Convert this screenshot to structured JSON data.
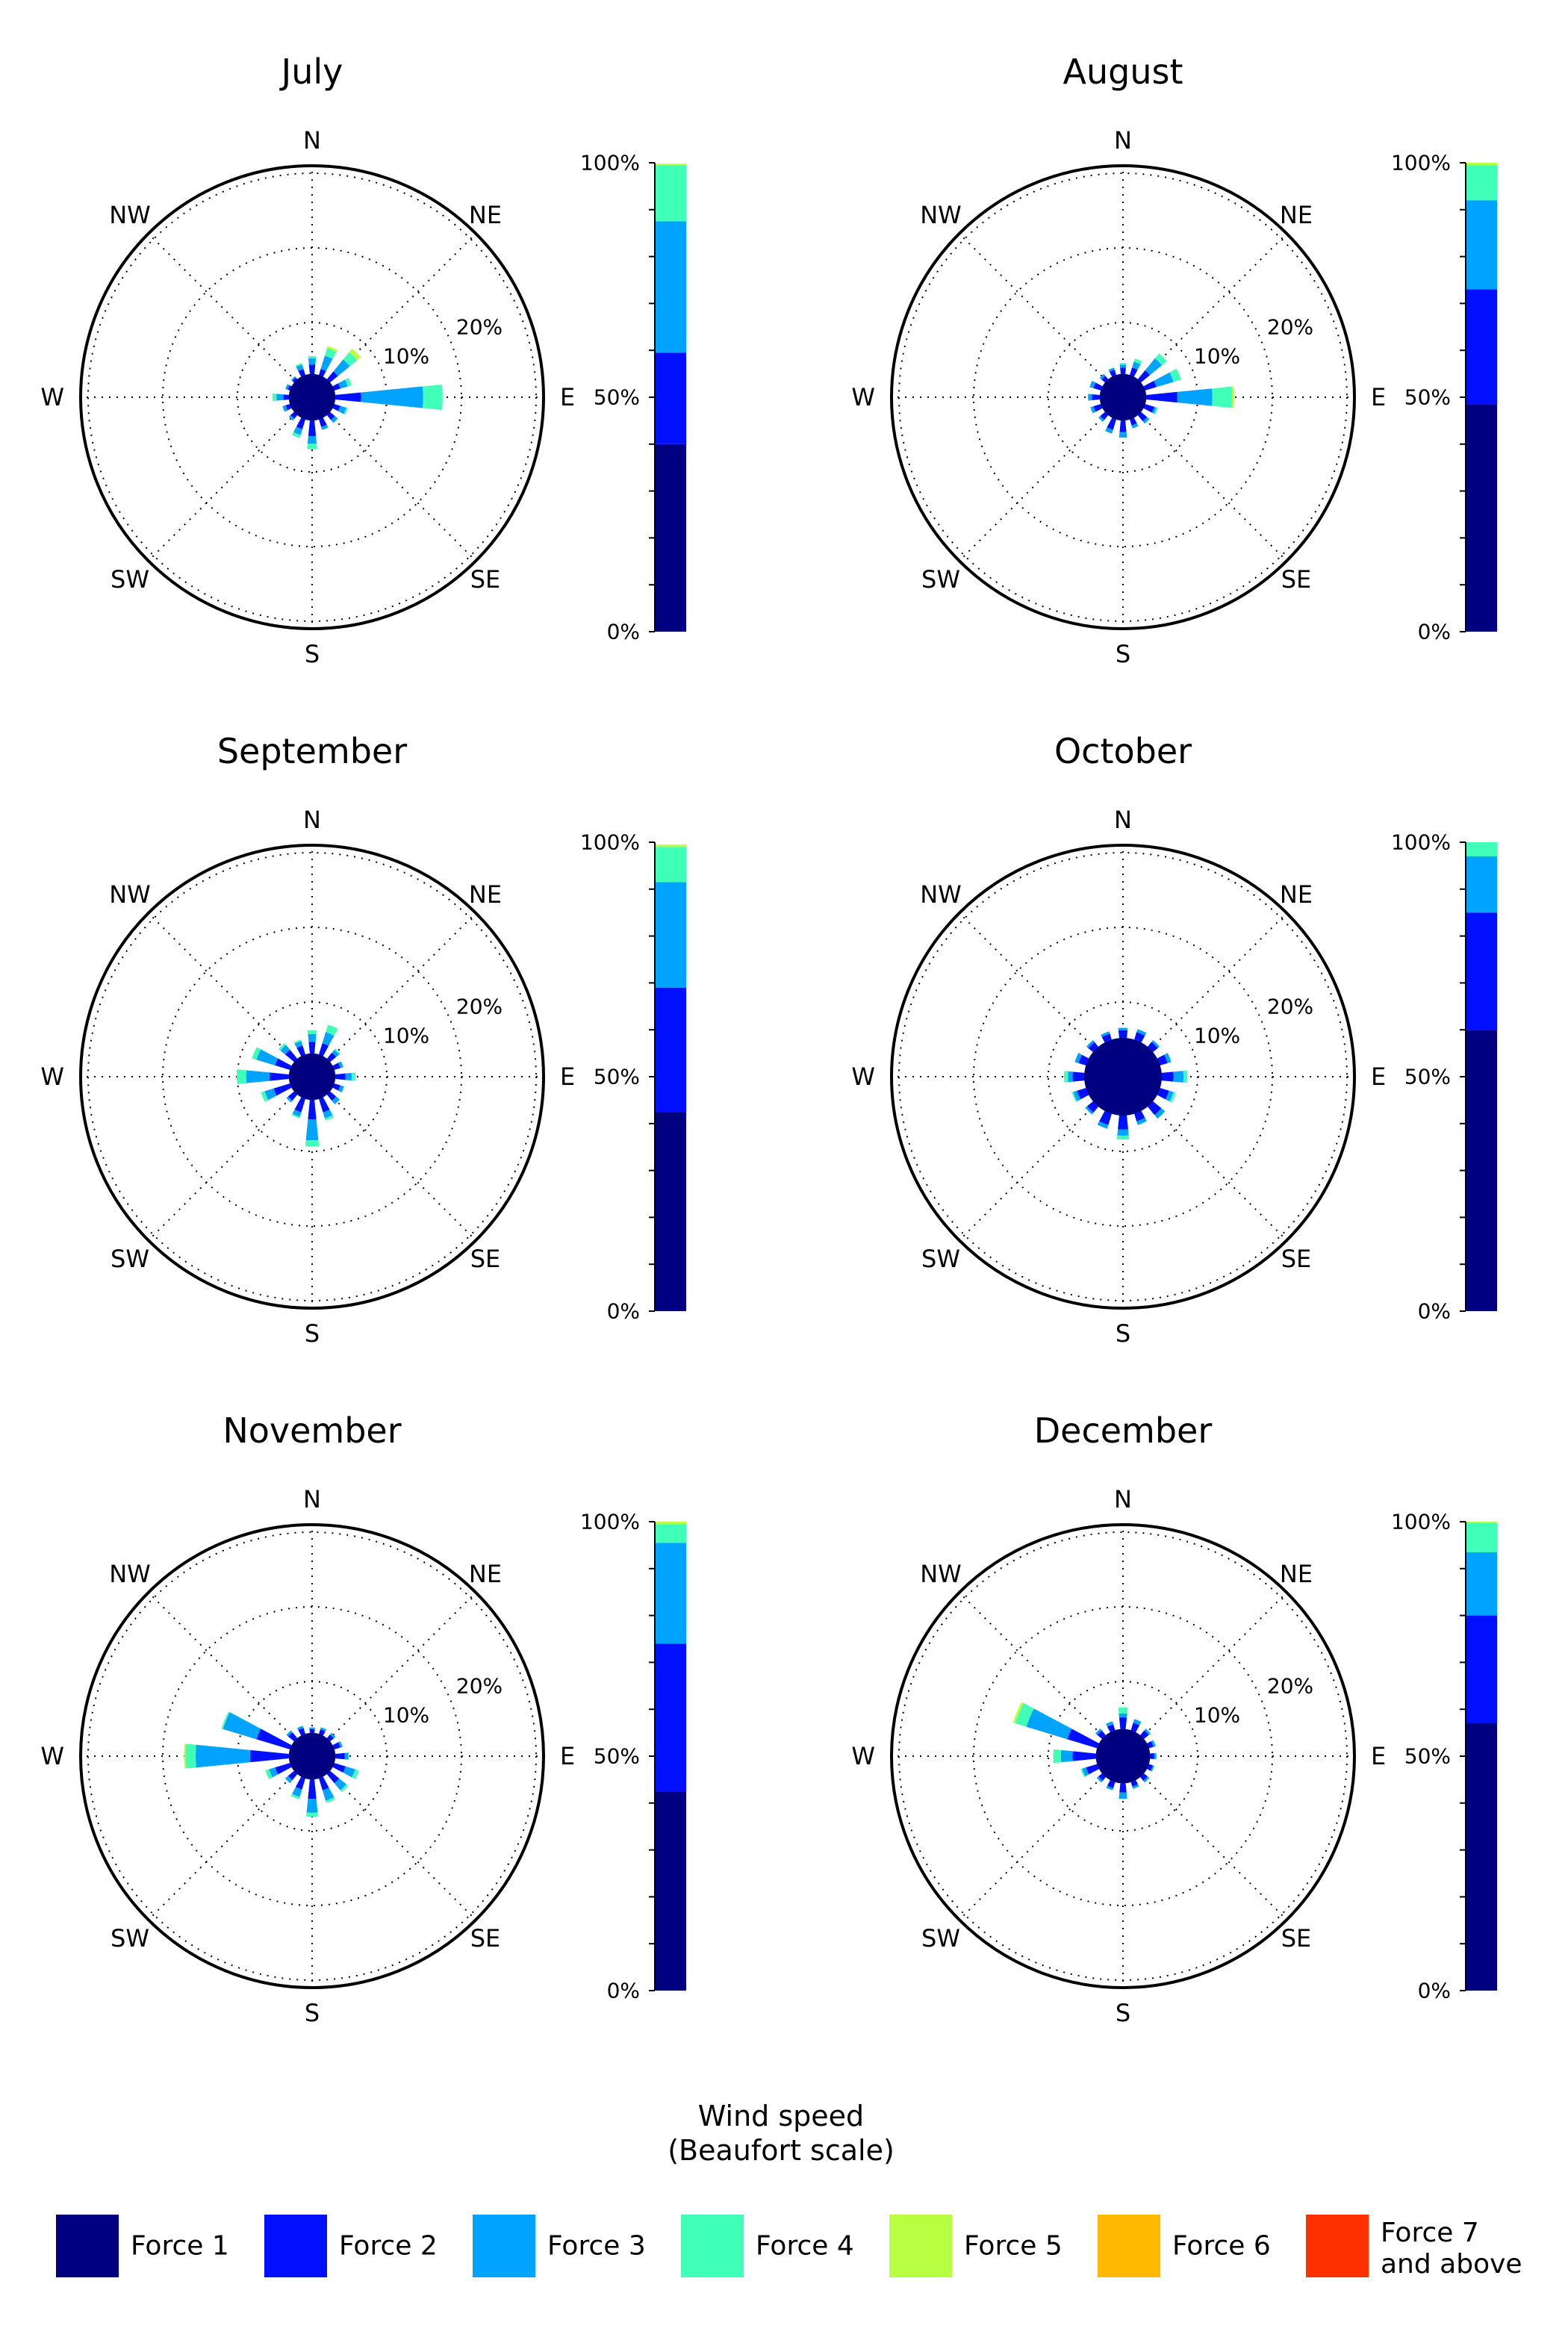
{
  "chart_data": {
    "type": "wind-rose",
    "direction_labels": [
      "N",
      "NE",
      "E",
      "SE",
      "S",
      "SW",
      "W",
      "NW"
    ],
    "ring_labels": [
      "10%",
      "20%"
    ],
    "bar_ticks": [
      "0%",
      "50%",
      "100%"
    ],
    "legend_title": [
      "Wind speed",
      "(Beaufort scale)"
    ],
    "categories": [
      {
        "name": "Force 1",
        "color": "#000080"
      },
      {
        "name": "Force 2",
        "color": "#0010ff"
      },
      {
        "name": "Force 3",
        "color": "#00a4ff"
      },
      {
        "name": "Force 4",
        "color": "#40ffb7"
      },
      {
        "name": "Force 5",
        "color": "#b7ff40"
      },
      {
        "name": "Force 6",
        "color": "#ffb900"
      },
      {
        "name": "Force 7\nand above",
        "color": "#ff3000"
      }
    ],
    "months": [
      {
        "title": "July",
        "distribution": [
          40,
          19.5,
          28,
          12,
          0.3,
          0,
          0
        ],
        "sectors": [
          [
            0,
            3.0,
            1.2,
            0.8,
            0.3,
            0,
            0,
            0
          ],
          [
            22.5,
            2.8,
            1.0,
            1.8,
            1.0,
            0.3,
            0,
            0
          ],
          [
            45,
            2.8,
            1.5,
            2.0,
            1.2,
            0.6,
            0,
            0
          ],
          [
            67.5,
            2.8,
            1.0,
            1.0,
            0.5,
            0,
            0,
            0
          ],
          [
            90,
            2.8,
            3.5,
            8.0,
            2.5,
            0,
            0,
            0
          ],
          [
            112.5,
            2.8,
            1.0,
            0.8,
            0.2,
            0,
            0,
            0
          ],
          [
            135,
            2.8,
            1.0,
            0.5,
            0,
            0,
            0,
            0
          ],
          [
            157.5,
            2.8,
            1.2,
            0.4,
            0,
            0,
            0,
            0
          ],
          [
            180,
            2.8,
            2.2,
            1.0,
            0.7,
            0,
            0,
            0
          ],
          [
            202.5,
            2.8,
            1.5,
            0.8,
            0.4,
            0,
            0,
            0
          ],
          [
            225,
            2.8,
            0.8,
            0.3,
            0,
            0,
            0,
            0
          ],
          [
            247.5,
            2.8,
            0.8,
            0.4,
            0,
            0,
            0,
            0
          ],
          [
            270,
            2.8,
            0.9,
            0.9,
            0.5,
            0,
            0,
            0
          ],
          [
            292.5,
            2.8,
            0.5,
            0.3,
            0,
            0,
            0,
            0
          ],
          [
            315,
            2.8,
            0.5,
            0.2,
            0,
            0,
            0,
            0
          ],
          [
            337.5,
            2.8,
            1.0,
            0.6,
            0.2,
            0,
            0,
            0
          ]
        ]
      },
      {
        "title": "August",
        "distribution": [
          48.5,
          24.5,
          19,
          7.5,
          0.5,
          0,
          0
        ],
        "sectors": [
          [
            0,
            3.0,
            0.8,
            0.4,
            0.2,
            0,
            0,
            0
          ],
          [
            22.5,
            3.0,
            1.0,
            0.8,
            0.4,
            0,
            0,
            0
          ],
          [
            45,
            3.0,
            1.5,
            2.0,
            0.8,
            0,
            0,
            0
          ],
          [
            67.5,
            3.0,
            1.5,
            2.3,
            1.0,
            0,
            0,
            0
          ],
          [
            90,
            3.0,
            4.0,
            4.5,
            2.5,
            0.3,
            0,
            0
          ],
          [
            112.5,
            3.0,
            1.2,
            0.3,
            0.2,
            0,
            0,
            0
          ],
          [
            135,
            3.0,
            1.0,
            0.4,
            0,
            0,
            0,
            0
          ],
          [
            157.5,
            3.0,
            0.8,
            0.4,
            0,
            0,
            0,
            0
          ],
          [
            180,
            3.0,
            1.5,
            0.7,
            0,
            0,
            0,
            0
          ],
          [
            202.5,
            3.0,
            1.4,
            0.5,
            0,
            0,
            0,
            0
          ],
          [
            225,
            3.0,
            0.8,
            0.3,
            0,
            0,
            0,
            0
          ],
          [
            247.5,
            3.0,
            1.0,
            0.4,
            0,
            0,
            0,
            0
          ],
          [
            270,
            3.0,
            1.0,
            0.5,
            0,
            0,
            0,
            0
          ],
          [
            292.5,
            3.0,
            1.0,
            0.5,
            0,
            0,
            0,
            0
          ],
          [
            315,
            3.0,
            0.6,
            0.3,
            0,
            0,
            0,
            0
          ],
          [
            337.5,
            3.0,
            0.7,
            0.3,
            0,
            0,
            0,
            0
          ]
        ]
      },
      {
        "title": "September",
        "distribution": [
          42.5,
          26.5,
          22.5,
          7.5,
          0.5,
          0,
          0
        ],
        "sectors": [
          [
            0,
            3.0,
            1.5,
            1.0,
            0.5,
            0,
            0,
            0
          ],
          [
            22.5,
            3.0,
            1.5,
            1.5,
            1.0,
            0,
            0,
            0
          ],
          [
            45,
            3.0,
            1.0,
            0.5,
            0.2,
            0,
            0,
            0
          ],
          [
            67.5,
            3.0,
            0.8,
            0.4,
            0,
            0,
            0,
            0
          ],
          [
            90,
            3.0,
            1.3,
            0.8,
            0.5,
            0,
            0,
            0
          ],
          [
            112.5,
            3.0,
            0.8,
            0.5,
            0,
            0,
            0,
            0
          ],
          [
            135,
            3.0,
            1.0,
            0.6,
            0,
            0,
            0,
            0
          ],
          [
            157.5,
            3.0,
            1.8,
            0.8,
            0.3,
            0,
            0,
            0
          ],
          [
            180,
            3.0,
            2.5,
            2.7,
            0.8,
            0,
            0,
            0
          ],
          [
            202.5,
            3.0,
            1.8,
            0.6,
            0.2,
            0,
            0,
            0
          ],
          [
            225,
            3.0,
            1.0,
            0.3,
            0,
            0,
            0,
            0
          ],
          [
            247.5,
            3.0,
            2.2,
            1.2,
            0.5,
            0,
            0,
            0
          ],
          [
            270,
            3.0,
            2.5,
            3.0,
            1.2,
            0,
            0,
            0
          ],
          [
            292.5,
            3.0,
            2.0,
            2.5,
            0.6,
            0,
            0,
            0
          ],
          [
            315,
            3.0,
            1.5,
            0.8,
            0.3,
            0,
            0,
            0
          ],
          [
            337.5,
            3.0,
            1.2,
            0.6,
            0.2,
            0,
            0,
            0
          ]
        ]
      },
      {
        "title": "October",
        "distribution": [
          60,
          25,
          12,
          3,
          0,
          0,
          0
        ],
        "sectors": [
          [
            0,
            5.0,
            1.0,
            0.3,
            0,
            0,
            0,
            0
          ],
          [
            22.5,
            5.0,
            1.0,
            0.4,
            0,
            0,
            0,
            0
          ],
          [
            45,
            5.0,
            0.8,
            0.3,
            0,
            0,
            0,
            0
          ],
          [
            67.5,
            5.0,
            1.0,
            0.5,
            0,
            0,
            0,
            0
          ],
          [
            90,
            5.0,
            1.5,
            1.3,
            0.5,
            0,
            0,
            0
          ],
          [
            112.5,
            5.0,
            1.2,
            0.6,
            0.3,
            0,
            0,
            0
          ],
          [
            135,
            5.0,
            1.4,
            0.6,
            0,
            0,
            0,
            0
          ],
          [
            157.5,
            5.0,
            1.0,
            0.5,
            0,
            0,
            0,
            0
          ],
          [
            180,
            5.0,
            1.8,
            0.8,
            0.5,
            0,
            0,
            0
          ],
          [
            202.5,
            5.0,
            1.5,
            0.5,
            0,
            0,
            0,
            0
          ],
          [
            225,
            5.0,
            1.0,
            0.3,
            0,
            0,
            0,
            0
          ],
          [
            247.5,
            5.0,
            1.2,
            0.5,
            0.2,
            0,
            0,
            0
          ],
          [
            270,
            5.0,
            1.5,
            0.6,
            0.5,
            0,
            0,
            0
          ],
          [
            292.5,
            5.0,
            1.0,
            0.5,
            0,
            0,
            0,
            0
          ],
          [
            315,
            5.0,
            0.8,
            0.3,
            0,
            0,
            0,
            0
          ],
          [
            337.5,
            5.0,
            0.8,
            0.3,
            0,
            0,
            0,
            0
          ]
        ]
      },
      {
        "title": "November",
        "distribution": [
          42.5,
          31.5,
          21.5,
          4,
          0.5,
          0,
          0
        ],
        "sectors": [
          [
            0,
            3.0,
            0.5,
            0.2,
            0,
            0,
            0,
            0
          ],
          [
            22.5,
            3.0,
            0.6,
            0.3,
            0,
            0,
            0,
            0
          ],
          [
            45,
            3.0,
            0.6,
            0.3,
            0,
            0,
            0,
            0
          ],
          [
            67.5,
            3.0,
            0.8,
            0.3,
            0,
            0,
            0,
            0
          ],
          [
            90,
            3.0,
            1.2,
            0.5,
            0,
            0,
            0,
            0
          ],
          [
            112.5,
            3.0,
            1.5,
            1.3,
            0.5,
            0,
            0,
            0
          ],
          [
            135,
            3.0,
            1.5,
            1.2,
            0.3,
            0,
            0,
            0
          ],
          [
            157.5,
            3.0,
            1.6,
            1.4,
            0.3,
            0,
            0,
            0
          ],
          [
            180,
            3.0,
            2.5,
            1.8,
            0.5,
            0,
            0,
            0
          ],
          [
            202.5,
            3.0,
            1.5,
            1.0,
            0.3,
            0,
            0,
            0
          ],
          [
            225,
            3.0,
            1.0,
            0.5,
            0,
            0,
            0,
            0
          ],
          [
            247.5,
            3.0,
            2.0,
            0.8,
            0.5,
            0,
            0,
            0
          ],
          [
            270,
            3.0,
            5.0,
            7.0,
            1.3,
            0.2,
            0,
            0
          ],
          [
            292.5,
            3.0,
            4.5,
            4.5,
            0.2,
            0,
            0,
            0
          ],
          [
            315,
            3.0,
            1.0,
            0.3,
            0,
            0,
            0,
            0
          ],
          [
            337.5,
            3.0,
            0.8,
            0.3,
            0,
            0,
            0,
            0
          ]
        ]
      },
      {
        "title": "December",
        "distribution": [
          57,
          23,
          13.5,
          6.3,
          0.2,
          0,
          0
        ],
        "sectors": [
          [
            0,
            3.5,
            1.5,
            0.5,
            0.8,
            0,
            0,
            0
          ],
          [
            22.5,
            3.5,
            1.0,
            0.5,
            0,
            0,
            0,
            0
          ],
          [
            45,
            3.5,
            0.8,
            0.3,
            0,
            0,
            0,
            0
          ],
          [
            67.5,
            3.5,
            0.6,
            0.3,
            0,
            0,
            0,
            0
          ],
          [
            90,
            3.5,
            0.5,
            0.3,
            0,
            0,
            0,
            0
          ],
          [
            112.5,
            3.5,
            0.5,
            0.2,
            0,
            0,
            0,
            0
          ],
          [
            135,
            3.5,
            0.6,
            0.3,
            0,
            0,
            0,
            0
          ],
          [
            157.5,
            3.5,
            0.6,
            0.3,
            0,
            0,
            0,
            0
          ],
          [
            180,
            3.5,
            1.2,
            0.8,
            0,
            0,
            0,
            0
          ],
          [
            202.5,
            3.5,
            0.8,
            0.3,
            0,
            0,
            0,
            0
          ],
          [
            225,
            3.5,
            0.6,
            0.3,
            0,
            0,
            0,
            0
          ],
          [
            247.5,
            3.5,
            1.5,
            0.5,
            0.2,
            0,
            0,
            0
          ],
          [
            270,
            3.5,
            3.0,
            1.5,
            1.0,
            0,
            0,
            0
          ],
          [
            292.5,
            3.5,
            4.0,
            5.5,
            1.5,
            0.3,
            0,
            0
          ],
          [
            315,
            3.5,
            0.8,
            0.3,
            0,
            0,
            0,
            0
          ],
          [
            337.5,
            3.5,
            0.8,
            0.4,
            0,
            0,
            0,
            0
          ]
        ]
      }
    ]
  }
}
